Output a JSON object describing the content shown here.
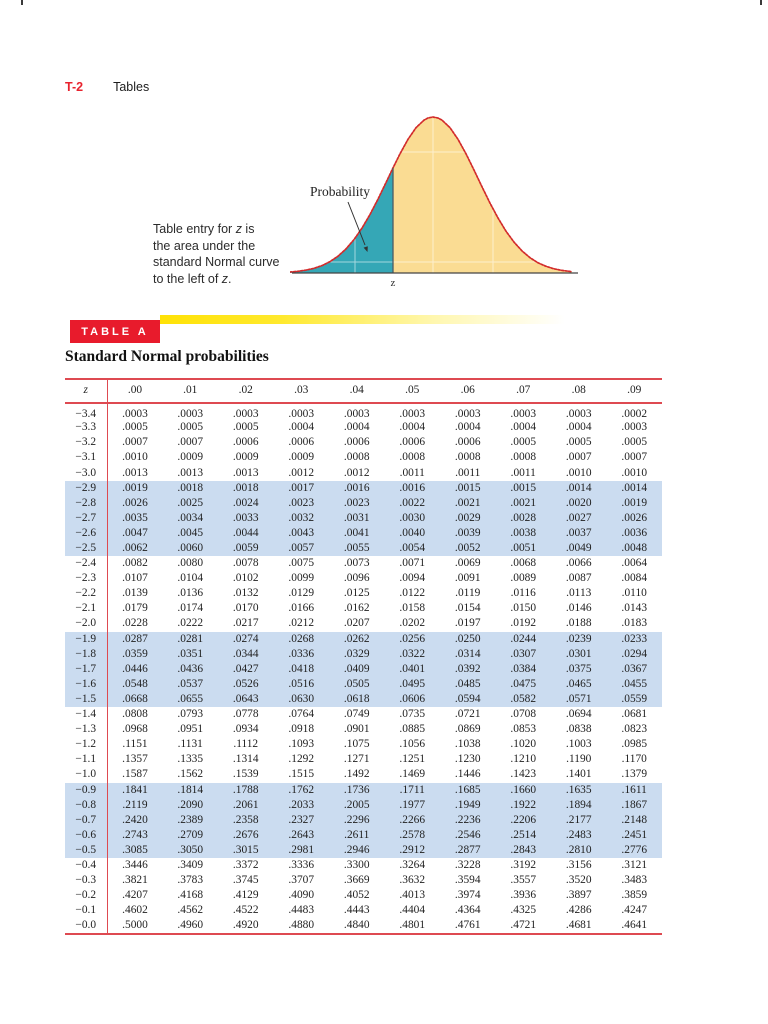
{
  "colors": {
    "page-label-red": "#e8232e",
    "banner-red": "#e81b2c",
    "gradient-yellow": "#ffe206",
    "rule-red": "#de4a51",
    "band-blue": "#cbdcf0",
    "curve-red": "#d22b2b",
    "fill-yellow": "#fadc93",
    "fill-teal": "#35a7b6",
    "axis-gray": "#444444"
  },
  "header": {
    "page_label": "T-2",
    "section": "Tables"
  },
  "figure": {
    "probability_label": "Probability",
    "z_axis_label": "z",
    "caption": {
      "line1_pre": "Table entry for ",
      "line1_italic": "z",
      "line1_post": " is",
      "line2": "the area under the",
      "line3": "standard Normal curve",
      "line4_pre": "to the left of ",
      "line4_italic": "z",
      "line4_post": "."
    }
  },
  "table": {
    "banner_label": "TABLE A",
    "title": "Standard Normal probabilities",
    "corner_header": "z",
    "col_headers": [
      ".00",
      ".01",
      ".02",
      ".03",
      ".04",
      ".05",
      ".06",
      ".07",
      ".08",
      ".09"
    ],
    "rows": [
      {
        "z": "−3.4",
        "values": [
          ".0003",
          ".0003",
          ".0003",
          ".0003",
          ".0003",
          ".0003",
          ".0003",
          ".0003",
          ".0003",
          ".0002"
        ]
      },
      {
        "z": "−3.3",
        "values": [
          ".0005",
          ".0005",
          ".0005",
          ".0004",
          ".0004",
          ".0004",
          ".0004",
          ".0004",
          ".0004",
          ".0003"
        ]
      },
      {
        "z": "−3.2",
        "values": [
          ".0007",
          ".0007",
          ".0006",
          ".0006",
          ".0006",
          ".0006",
          ".0006",
          ".0005",
          ".0005",
          ".0005"
        ]
      },
      {
        "z": "−3.1",
        "values": [
          ".0010",
          ".0009",
          ".0009",
          ".0009",
          ".0008",
          ".0008",
          ".0008",
          ".0008",
          ".0007",
          ".0007"
        ]
      },
      {
        "z": "−3.0",
        "values": [
          ".0013",
          ".0013",
          ".0013",
          ".0012",
          ".0012",
          ".0011",
          ".0011",
          ".0011",
          ".0010",
          ".0010"
        ]
      },
      {
        "z": "−2.9",
        "values": [
          ".0019",
          ".0018",
          ".0018",
          ".0017",
          ".0016",
          ".0016",
          ".0015",
          ".0015",
          ".0014",
          ".0014"
        ]
      },
      {
        "z": "−2.8",
        "values": [
          ".0026",
          ".0025",
          ".0024",
          ".0023",
          ".0023",
          ".0022",
          ".0021",
          ".0021",
          ".0020",
          ".0019"
        ]
      },
      {
        "z": "−2.7",
        "values": [
          ".0035",
          ".0034",
          ".0033",
          ".0032",
          ".0031",
          ".0030",
          ".0029",
          ".0028",
          ".0027",
          ".0026"
        ]
      },
      {
        "z": "−2.6",
        "values": [
          ".0047",
          ".0045",
          ".0044",
          ".0043",
          ".0041",
          ".0040",
          ".0039",
          ".0038",
          ".0037",
          ".0036"
        ]
      },
      {
        "z": "−2.5",
        "values": [
          ".0062",
          ".0060",
          ".0059",
          ".0057",
          ".0055",
          ".0054",
          ".0052",
          ".0051",
          ".0049",
          ".0048"
        ]
      },
      {
        "z": "−2.4",
        "values": [
          ".0082",
          ".0080",
          ".0078",
          ".0075",
          ".0073",
          ".0071",
          ".0069",
          ".0068",
          ".0066",
          ".0064"
        ]
      },
      {
        "z": "−2.3",
        "values": [
          ".0107",
          ".0104",
          ".0102",
          ".0099",
          ".0096",
          ".0094",
          ".0091",
          ".0089",
          ".0087",
          ".0084"
        ]
      },
      {
        "z": "−2.2",
        "values": [
          ".0139",
          ".0136",
          ".0132",
          ".0129",
          ".0125",
          ".0122",
          ".0119",
          ".0116",
          ".0113",
          ".0110"
        ]
      },
      {
        "z": "−2.1",
        "values": [
          ".0179",
          ".0174",
          ".0170",
          ".0166",
          ".0162",
          ".0158",
          ".0154",
          ".0150",
          ".0146",
          ".0143"
        ]
      },
      {
        "z": "−2.0",
        "values": [
          ".0228",
          ".0222",
          ".0217",
          ".0212",
          ".0207",
          ".0202",
          ".0197",
          ".0192",
          ".0188",
          ".0183"
        ]
      },
      {
        "z": "−1.9",
        "values": [
          ".0287",
          ".0281",
          ".0274",
          ".0268",
          ".0262",
          ".0256",
          ".0250",
          ".0244",
          ".0239",
          ".0233"
        ]
      },
      {
        "z": "−1.8",
        "values": [
          ".0359",
          ".0351",
          ".0344",
          ".0336",
          ".0329",
          ".0322",
          ".0314",
          ".0307",
          ".0301",
          ".0294"
        ]
      },
      {
        "z": "−1.7",
        "values": [
          ".0446",
          ".0436",
          ".0427",
          ".0418",
          ".0409",
          ".0401",
          ".0392",
          ".0384",
          ".0375",
          ".0367"
        ]
      },
      {
        "z": "−1.6",
        "values": [
          ".0548",
          ".0537",
          ".0526",
          ".0516",
          ".0505",
          ".0495",
          ".0485",
          ".0475",
          ".0465",
          ".0455"
        ]
      },
      {
        "z": "−1.5",
        "values": [
          ".0668",
          ".0655",
          ".0643",
          ".0630",
          ".0618",
          ".0606",
          ".0594",
          ".0582",
          ".0571",
          ".0559"
        ]
      },
      {
        "z": "−1.4",
        "values": [
          ".0808",
          ".0793",
          ".0778",
          ".0764",
          ".0749",
          ".0735",
          ".0721",
          ".0708",
          ".0694",
          ".0681"
        ]
      },
      {
        "z": "−1.3",
        "values": [
          ".0968",
          ".0951",
          ".0934",
          ".0918",
          ".0901",
          ".0885",
          ".0869",
          ".0853",
          ".0838",
          ".0823"
        ]
      },
      {
        "z": "−1.2",
        "values": [
          ".1151",
          ".1131",
          ".1112",
          ".1093",
          ".1075",
          ".1056",
          ".1038",
          ".1020",
          ".1003",
          ".0985"
        ]
      },
      {
        "z": "−1.1",
        "values": [
          ".1357",
          ".1335",
          ".1314",
          ".1292",
          ".1271",
          ".1251",
          ".1230",
          ".1210",
          ".1190",
          ".1170"
        ]
      },
      {
        "z": "−1.0",
        "values": [
          ".1587",
          ".1562",
          ".1539",
          ".1515",
          ".1492",
          ".1469",
          ".1446",
          ".1423",
          ".1401",
          ".1379"
        ]
      },
      {
        "z": "−0.9",
        "values": [
          ".1841",
          ".1814",
          ".1788",
          ".1762",
          ".1736",
          ".1711",
          ".1685",
          ".1660",
          ".1635",
          ".1611"
        ]
      },
      {
        "z": "−0.8",
        "values": [
          ".2119",
          ".2090",
          ".2061",
          ".2033",
          ".2005",
          ".1977",
          ".1949",
          ".1922",
          ".1894",
          ".1867"
        ]
      },
      {
        "z": "−0.7",
        "values": [
          ".2420",
          ".2389",
          ".2358",
          ".2327",
          ".2296",
          ".2266",
          ".2236",
          ".2206",
          ".2177",
          ".2148"
        ]
      },
      {
        "z": "−0.6",
        "values": [
          ".2743",
          ".2709",
          ".2676",
          ".2643",
          ".2611",
          ".2578",
          ".2546",
          ".2514",
          ".2483",
          ".2451"
        ]
      },
      {
        "z": "−0.5",
        "values": [
          ".3085",
          ".3050",
          ".3015",
          ".2981",
          ".2946",
          ".2912",
          ".2877",
          ".2843",
          ".2810",
          ".2776"
        ]
      },
      {
        "z": "−0.4",
        "values": [
          ".3446",
          ".3409",
          ".3372",
          ".3336",
          ".3300",
          ".3264",
          ".3228",
          ".3192",
          ".3156",
          ".3121"
        ]
      },
      {
        "z": "−0.3",
        "values": [
          ".3821",
          ".3783",
          ".3745",
          ".3707",
          ".3669",
          ".3632",
          ".3594",
          ".3557",
          ".3520",
          ".3483"
        ]
      },
      {
        "z": "−0.2",
        "values": [
          ".4207",
          ".4168",
          ".4129",
          ".4090",
          ".4052",
          ".4013",
          ".3974",
          ".3936",
          ".3897",
          ".3859"
        ]
      },
      {
        "z": "−0.1",
        "values": [
          ".4602",
          ".4562",
          ".4522",
          ".4483",
          ".4443",
          ".4404",
          ".4364",
          ".4325",
          ".4286",
          ".4247"
        ]
      },
      {
        "z": "−0.0",
        "values": [
          ".5000",
          ".4960",
          ".4920",
          ".4880",
          ".4840",
          ".4801",
          ".4761",
          ".4721",
          ".4681",
          ".4641"
        ]
      }
    ]
  }
}
